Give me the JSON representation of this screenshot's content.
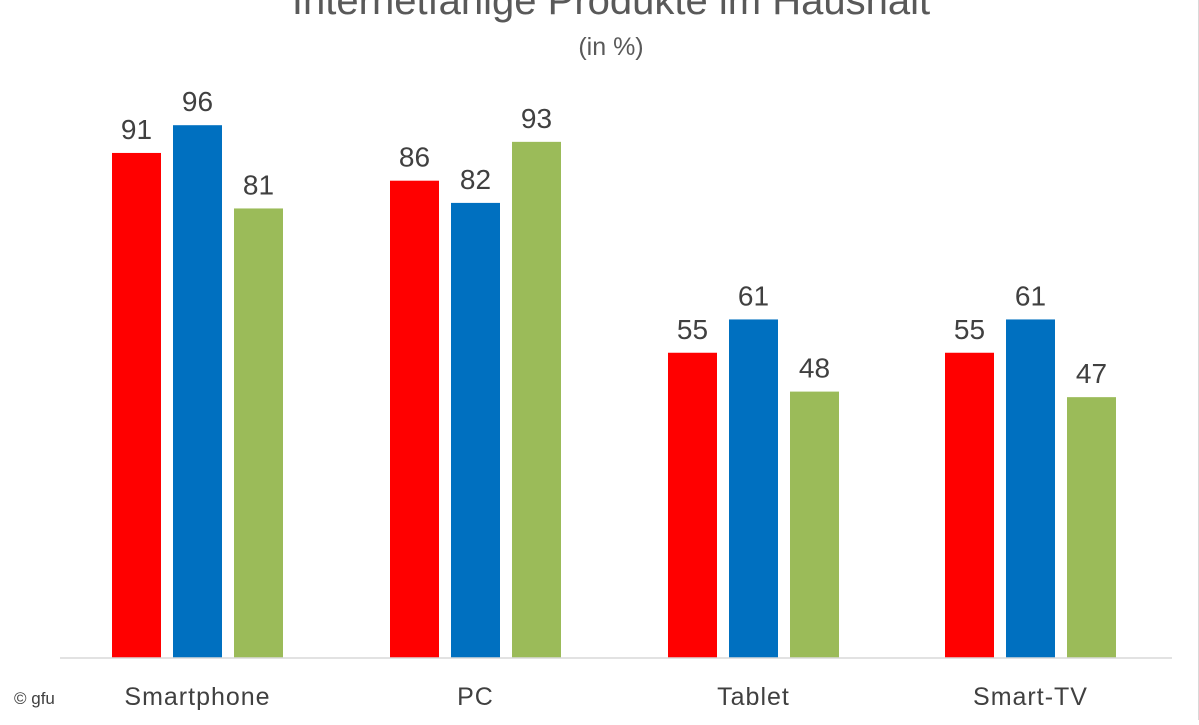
{
  "chart_data": {
    "type": "bar",
    "title": "Internetfähige Produkte im Haushalt",
    "subtitle": "(in %)",
    "categories": [
      "Smartphone",
      "PC",
      "Tablet",
      "Smart-TV"
    ],
    "series": [
      {
        "color": "#ff0000",
        "values": [
          91,
          86,
          55,
          55
        ]
      },
      {
        "color": "#0070c0",
        "values": [
          96,
          82,
          61,
          61
        ]
      },
      {
        "color": "#9bbb59",
        "values": [
          81,
          93,
          48,
          47
        ]
      }
    ],
    "ylim": [
      0,
      100
    ],
    "grid": false,
    "legend": "none"
  },
  "copyright": "© gfu"
}
